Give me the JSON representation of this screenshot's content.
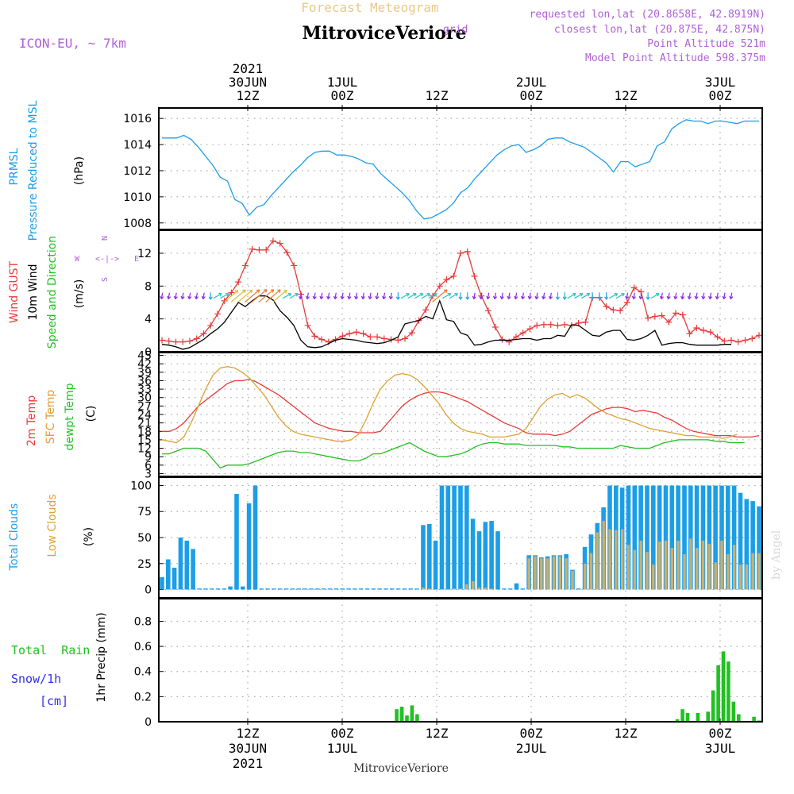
{
  "header": {
    "main_title": "Forecast Meteogram",
    "station": "MitroviceVeriore",
    "model": "ICON-EU, ~ 7km",
    "requested": "requested lon,lat (20.8658E, 42.8919N)",
    "closest": "closest lon,lat (20.875E, 42.875N)",
    "closest_overlap": "grid",
    "point_alt": "Point Altitude 521m",
    "model_alt": "Model Point Altitude 598.375m",
    "footer_station": "MitroviceVeriore",
    "credit": "by Angel",
    "colors": {
      "title": "#e8c98a",
      "info": "#b060d8",
      "model": "#b060d8",
      "station": "#000000"
    }
  },
  "time_axis": {
    "ticks": [
      {
        "top": [
          "2021",
          "30JUN",
          "12Z"
        ],
        "bottom": [
          "12Z",
          "30JUN",
          "2021"
        ]
      },
      {
        "top": [
          "1JUL",
          "00Z"
        ],
        "bottom": [
          "00Z",
          "1JUL"
        ]
      },
      {
        "top": [
          "12Z"
        ],
        "bottom": [
          "12Z"
        ]
      },
      {
        "top": [
          "2JUL",
          "00Z"
        ],
        "bottom": [
          "00Z",
          "2JUL"
        ]
      },
      {
        "top": [
          "12Z"
        ],
        "bottom": [
          "12Z"
        ]
      },
      {
        "top": [
          "3JUL",
          "00Z"
        ],
        "bottom": [
          "00Z",
          "3JUL"
        ]
      }
    ]
  },
  "panel_labels": {
    "pressure": [
      {
        "text": "PRMSL",
        "color": "#1c9ee6"
      },
      {
        "text": "Pressure Reduced to MSL",
        "color": "#1c9ee6"
      },
      {
        "text": "(hPa)",
        "color": "#000000"
      }
    ],
    "wind": [
      {
        "text": "Wind GUST",
        "color": "#e83a3a"
      },
      {
        "text": "10m Wind",
        "color": "#000000"
      },
      {
        "text": "Speed and Direction",
        "color": "#22c022"
      },
      {
        "text": "(m/s)",
        "color": "#000000"
      }
    ],
    "compass": {
      "n": "N",
      "s": "S",
      "w": "W",
      "e": "E",
      "arrow": "<-|->",
      "color": "#b060d8"
    },
    "temp": [
      {
        "text": "2m Temp",
        "color": "#e83a3a"
      },
      {
        "text": "SFC Temp",
        "color": "#e0a030"
      },
      {
        "text": "dewpt Temp",
        "color": "#22c022"
      },
      {
        "text": "(C)",
        "color": "#000000"
      }
    ],
    "clouds": [
      {
        "text": "Total Clouds",
        "color": "#1c9ee6"
      },
      {
        "text": "Low Clouds",
        "color": "#e0a030"
      },
      {
        "text": "(%)",
        "color": "#000000"
      }
    ],
    "precip": {
      "total_rain": "Total  Rain",
      "snow": "Snow/1h",
      "snow_unit": "[cm]",
      "axis": "1hr Precip (mm)",
      "rain_color": "#22c022",
      "snow_color": "#3030e0"
    }
  },
  "chart_data": [
    {
      "type": "line",
      "panel": "pressure",
      "xlim": [
        0,
        64
      ],
      "ylim": [
        1007.5,
        1016.8
      ],
      "yticks": [
        "1008",
        "1010",
        "1012",
        "1014",
        "1016"
      ],
      "series": [
        {
          "name": "PRMSL",
          "color": "#1c9ee6",
          "values": [
            1014.5,
            1014.5,
            1014.5,
            1014.7,
            1014.4,
            1013.8,
            1013.1,
            1012.4,
            1011.5,
            1011.2,
            1009.8,
            1009.5,
            1008.6,
            1009.2,
            1009.4,
            1010.1,
            1010.7,
            1011.3,
            1011.9,
            1012.4,
            1013.0,
            1013.4,
            1013.5,
            1013.5,
            1013.2,
            1013.2,
            1013.1,
            1012.9,
            1012.6,
            1012.5,
            1011.8,
            1011.3,
            1010.8,
            1010.3,
            1009.7,
            1008.9,
            1008.3,
            1008.4,
            1008.7,
            1009.0,
            1009.5,
            1010.3,
            1010.7,
            1011.4,
            1012.0,
            1012.6,
            1013.2,
            1013.6,
            1013.9,
            1014.0,
            1013.4,
            1013.6,
            1013.9,
            1014.4,
            1014.5,
            1014.5,
            1014.2,
            1014.0,
            1013.8,
            1013.4,
            1013.0,
            1012.6,
            1011.9,
            1012.7,
            1012.7,
            1012.3,
            1012.5,
            1012.7,
            1013.9,
            1014.2,
            1015.2,
            1015.6,
            1015.9,
            1015.8,
            1015.8,
            1015.6,
            1015.8,
            1015.8,
            1015.7,
            1015.6,
            1015.8,
            1015.8,
            1015.8
          ]
        }
      ]
    },
    {
      "type": "line",
      "panel": "wind",
      "xlim": [
        0,
        64
      ],
      "ylim": [
        0,
        14.8
      ],
      "yticks": [
        "0",
        "4",
        "8",
        "12"
      ],
      "series": [
        {
          "name": "Wind GUST",
          "color": "#e83a3a",
          "values": [
            1.4,
            1.3,
            1.2,
            1.2,
            1.3,
            1.6,
            2.2,
            3.2,
            4.6,
            6.2,
            7.2,
            8.5,
            10.5,
            12.5,
            12.4,
            12.4,
            13.5,
            13.2,
            12.1,
            10.5,
            7.0,
            3.2,
            1.9,
            1.5,
            1.2,
            1.5,
            1.9,
            2.2,
            2.4,
            2.2,
            1.8,
            1.8,
            1.6,
            1.5,
            1.4,
            1.6,
            2.3,
            3.8,
            5.1,
            6.8,
            8.0,
            8.8,
            9.2,
            12.0,
            12.2,
            9.2,
            6.8,
            5.0,
            3.0,
            1.5,
            1.2,
            1.8,
            2.3,
            2.8,
            3.2,
            3.3,
            3.3,
            3.2,
            3.3,
            3.2,
            3.5,
            3.6,
            6.6,
            6.6,
            5.5,
            5.1,
            5.0,
            6.0,
            7.8,
            7.3,
            4.1,
            4.3,
            4.4,
            3.6,
            4.7,
            4.5,
            2.2,
            2.9,
            2.6,
            2.4,
            1.8,
            1.3,
            1.4,
            1.2,
            1.4,
            1.6,
            2.0
          ]
        },
        {
          "name": "10m Wind",
          "color": "#000000",
          "values": [
            0.9,
            0.8,
            0.6,
            0.3,
            0.5,
            1.0,
            1.5,
            2.2,
            2.8,
            3.6,
            4.8,
            6.0,
            5.5,
            6.2,
            6.8,
            6.8,
            6.3,
            5.0,
            4.2,
            3.2,
            1.4,
            0.6,
            0.5,
            0.6,
            1.0,
            1.4,
            1.6,
            1.5,
            1.4,
            1.2,
            1.1,
            1.0,
            1.1,
            1.4,
            1.8,
            3.4,
            3.6,
            3.8,
            4.3,
            4.0,
            6.2,
            3.9,
            3.7,
            2.3,
            2.0,
            0.8,
            0.9,
            1.2,
            1.4,
            1.4,
            1.4,
            1.5,
            1.6,
            1.6,
            1.4,
            1.6,
            1.6,
            2.0,
            1.9,
            3.3,
            3.2,
            2.6,
            2.0,
            1.9,
            2.4,
            2.6,
            2.6,
            1.5,
            1.4,
            1.6,
            2.0,
            2.6,
            0.8,
            1.0,
            1.1,
            1.1,
            0.9,
            0.8,
            0.8,
            0.8,
            0.8,
            0.9,
            0.9
          ]
        }
      ]
    },
    {
      "type": "line",
      "panel": "temp",
      "xlim": [
        0,
        64
      ],
      "ylim": [
        2,
        46
      ],
      "yticks": [
        "3",
        "6",
        "9",
        "12",
        "15",
        "18",
        "21",
        "24",
        "27",
        "30",
        "33",
        "36",
        "39",
        "42",
        "45"
      ],
      "series": [
        {
          "name": "2m Temp",
          "color": "#e83a3a",
          "values": [
            18,
            18,
            19,
            21,
            24,
            27,
            29,
            31,
            33,
            35,
            36,
            36,
            36.5,
            35.5,
            34,
            32.5,
            31,
            29,
            27,
            25,
            23,
            21,
            20,
            19,
            18.5,
            18,
            18,
            17.5,
            17.5,
            17.5,
            18,
            21,
            24,
            27,
            29,
            30.5,
            31.5,
            32,
            32,
            31.5,
            30.5,
            29.5,
            28.5,
            27,
            25.5,
            24,
            22.5,
            21,
            20,
            19,
            17.5,
            17,
            17,
            17,
            16.5,
            17,
            18,
            20,
            22,
            24,
            25,
            26,
            26.5,
            26.5,
            26,
            25,
            25.5,
            25,
            24.5,
            23,
            22,
            20.5,
            19,
            18,
            17.5,
            17,
            16.5,
            16.5,
            16.5,
            16,
            16,
            16,
            16.5
          ]
        },
        {
          "name": "SFC Temp",
          "color": "#e0a030",
          "values": [
            15,
            14.5,
            14,
            16,
            21,
            27,
            33,
            38,
            40.5,
            41,
            40.5,
            39,
            37,
            34,
            31,
            27,
            23,
            20,
            18,
            17,
            16.5,
            16,
            15.5,
            15,
            14.5,
            14.5,
            15,
            17,
            22,
            28,
            33,
            36,
            38,
            38.5,
            38,
            36.5,
            34,
            31,
            28,
            24,
            21,
            19,
            18,
            17.5,
            17,
            16,
            16,
            16,
            16.5,
            17,
            19,
            23,
            27,
            29.5,
            31,
            31.5,
            30,
            31,
            30,
            28,
            26,
            24.5,
            23.5,
            22.5,
            22,
            21,
            20,
            19,
            18.5,
            18,
            17.5,
            17,
            16.5,
            16.5,
            16,
            16,
            16,
            15.5,
            16,
            17
          ]
        },
        {
          "name": "dewpt Temp",
          "color": "#22c022",
          "values": [
            10,
            10,
            11,
            12,
            12,
            12,
            11,
            8,
            5,
            6,
            6,
            6,
            6.5,
            7.5,
            8.5,
            9.5,
            10.5,
            11,
            11,
            10.5,
            10.5,
            10,
            9.5,
            9,
            8.5,
            8,
            7.5,
            7.5,
            8.5,
            10,
            10,
            11,
            12,
            13,
            14,
            12.5,
            11,
            10,
            9,
            9,
            9.5,
            10,
            11,
            12.5,
            13.5,
            14,
            14,
            13.5,
            13.5,
            13.5,
            13,
            13,
            13,
            13,
            13,
            12.5,
            12.5,
            12,
            12,
            12,
            12,
            12,
            12,
            13,
            12.5,
            12,
            12,
            12,
            13,
            14,
            14.5,
            15,
            15,
            15,
            15,
            15,
            14.5,
            14.5,
            14,
            14,
            14
          ]
        }
      ]
    },
    {
      "type": "bar",
      "panel": "clouds",
      "xlim": [
        0,
        64
      ],
      "ylim": [
        -8,
        108
      ],
      "yticks": [
        "0",
        "25",
        "50",
        "75",
        "100"
      ],
      "series": [
        {
          "name": "Total Clouds",
          "color": "#1c9ee6",
          "values": [
            12,
            29,
            21,
            50,
            47,
            39,
            1,
            1,
            1,
            1,
            1,
            3,
            92,
            3,
            83,
            100,
            1,
            1,
            1,
            1,
            1,
            1,
            1,
            1,
            1,
            1,
            1,
            1,
            1,
            1,
            1,
            1,
            1,
            1,
            1,
            1,
            1,
            1,
            1,
            1,
            1,
            1,
            62,
            63,
            47,
            100,
            100,
            100,
            100,
            100,
            68,
            56,
            65,
            66,
            56,
            1,
            1,
            6,
            1,
            33,
            33,
            31,
            32,
            33,
            33,
            34,
            19,
            1,
            41,
            53,
            64,
            79,
            100,
            100,
            98,
            100,
            100,
            100,
            100,
            100,
            100,
            100,
            100,
            100,
            100,
            100,
            100,
            100,
            100,
            100,
            100,
            100,
            100,
            93,
            87,
            85,
            80
          ]
        },
        {
          "name": "Low Clouds",
          "color": "#c8b070",
          "values": [
            0,
            0,
            0,
            0,
            0,
            0,
            0,
            0,
            0,
            0,
            0,
            0,
            0,
            0,
            0,
            0,
            0,
            0,
            0,
            0,
            0,
            0,
            0,
            0,
            0,
            0,
            0,
            0,
            0,
            0,
            0,
            0,
            0,
            0,
            0,
            0,
            0,
            0,
            0,
            0,
            0,
            0,
            2,
            1,
            0,
            0,
            0,
            1,
            1,
            5,
            8,
            2,
            2,
            1,
            0,
            0,
            0,
            0,
            0,
            30,
            32,
            30,
            30,
            32,
            32,
            30,
            18,
            0,
            25,
            35,
            55,
            66,
            58,
            57,
            58,
            43,
            38,
            47,
            36,
            24,
            46,
            47,
            40,
            47,
            34,
            49,
            40,
            47,
            44,
            26,
            47,
            34,
            43,
            24,
            24,
            35,
            35
          ]
        }
      ]
    },
    {
      "type": "bar",
      "panel": "precip",
      "xlim": [
        0,
        64
      ],
      "ylim": [
        0,
        0.98
      ],
      "yticks": [
        "0",
        "0.2",
        "0.4",
        "0.6",
        "0.8"
      ],
      "series": [
        {
          "name": "Total Rain",
          "color": "#22c022",
          "values": [
            0,
            0,
            0,
            0,
            0,
            0,
            0,
            0,
            0,
            0,
            0,
            0,
            0,
            0,
            0,
            0,
            0,
            0,
            0,
            0,
            0,
            0,
            0,
            0,
            0,
            0,
            0,
            0,
            0,
            0,
            0,
            0,
            0,
            0,
            0,
            0,
            0,
            0,
            0,
            0,
            0,
            0,
            0,
            0,
            0,
            0,
            0.1,
            0.12,
            0.05,
            0.13,
            0.06,
            0,
            0,
            0,
            0,
            0,
            0,
            0,
            0,
            0,
            0,
            0,
            0,
            0,
            0,
            0,
            0,
            0,
            0,
            0,
            0,
            0,
            0,
            0,
            0,
            0,
            0,
            0,
            0,
            0,
            0,
            0,
            0,
            0,
            0,
            0,
            0,
            0,
            0,
            0,
            0,
            0,
            0,
            0,
            0,
            0,
            0,
            0,
            0,
            0,
            0,
            0.02,
            0.1,
            0.07,
            0,
            0.07,
            0,
            0.08,
            0.25,
            0.45,
            0.56,
            0.48,
            0.16,
            0.06,
            0,
            0,
            0.04,
            0.01
          ]
        }
      ]
    }
  ]
}
